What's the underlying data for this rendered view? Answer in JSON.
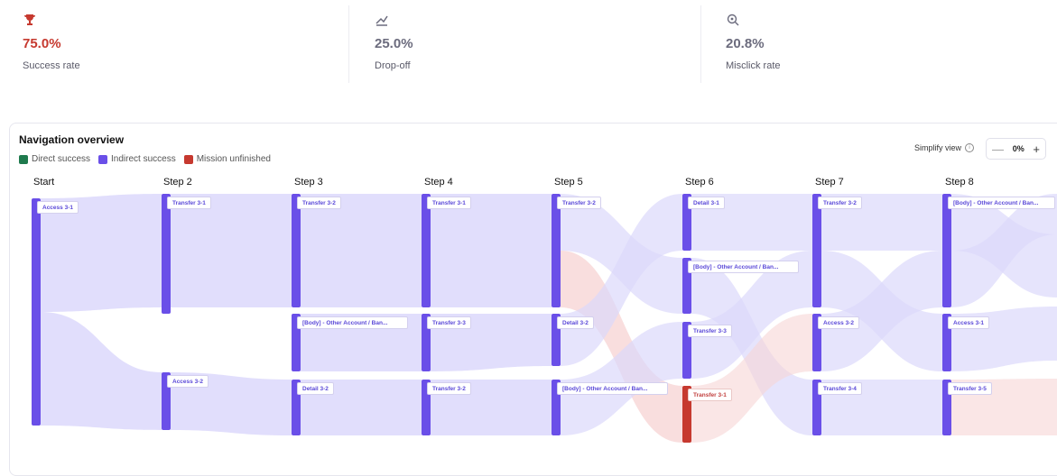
{
  "stats": [
    {
      "icon": "trophy-icon",
      "value": "75.0%",
      "label": "Success rate",
      "value_color": "#c6392f",
      "icon_color": "#c6392f"
    },
    {
      "icon": "drop-off-icon",
      "value": "25.0%",
      "label": "Drop-off",
      "value_color": "#6b6b7d",
      "icon_color": "#6b6b7d"
    },
    {
      "icon": "misclick-icon",
      "value": "20.8%",
      "label": "Misclick rate",
      "value_color": "#6b6b7d",
      "icon_color": "#6b6b7d"
    }
  ],
  "panel": {
    "title": "Navigation overview",
    "legend": [
      {
        "label": "Direct success",
        "color": "#1f7a4d"
      },
      {
        "label": "Indirect success",
        "color": "#6a4fe8"
      },
      {
        "label": "Mission unfinished",
        "color": "#c6392f"
      }
    ],
    "simplify_label": "Simplify view",
    "zoom_value": "0%",
    "zoom_minus": "—",
    "zoom_plus": "+"
  },
  "colors": {
    "indirect": "#6a4fe8",
    "unfinished": "#c6392f",
    "flow": "#dcd8fb",
    "flow_red": "#f7d6d6"
  },
  "steps": [
    "Start",
    "Step 2",
    "Step 3",
    "Step 4",
    "Step 5",
    "Step 6",
    "Step 7",
    "Step 8"
  ],
  "nodes": [
    [
      "Access 3-1"
    ],
    [
      "Transfer 3-1",
      "Access 3-2"
    ],
    [
      "Transfer 3-2",
      "[Body] - Other Account / Ban...",
      "Detail 3-2"
    ],
    [
      "Transfer 3-1",
      "Transfer 3-3",
      "Transfer 3-2"
    ],
    [
      "Transfer 3-2",
      "Detail 3-2",
      "[Body] - Other Account / Ban..."
    ],
    [
      "Detail 3-1",
      "[Body] - Other Account / Ban...",
      "Transfer 3-3",
      "Transfer 3-1"
    ],
    [
      "Transfer 3-2",
      "Access 3-2",
      "Transfer 3-4"
    ],
    [
      "[Body] - Other Account / Ban...",
      "Access 3-1",
      "Transfer 3-5"
    ]
  ]
}
